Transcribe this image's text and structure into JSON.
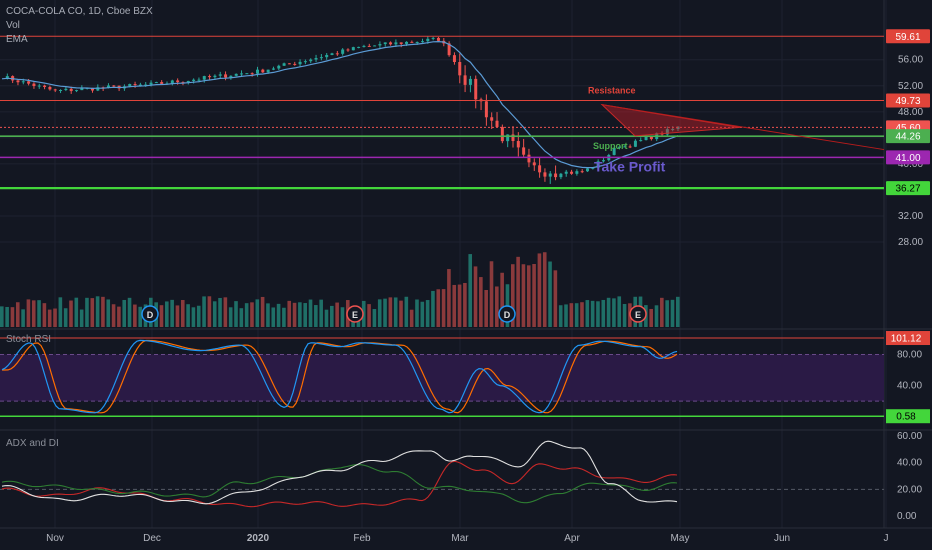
{
  "header": {
    "symbol_line": "COCA-COLA CO, 1D, Cboe BZX",
    "vol_label": "Vol",
    "ema_label": "EMA"
  },
  "panes": {
    "stoch_label": "Stoch RSI",
    "adx_label": "ADX and DI"
  },
  "colors": {
    "background": "#131722",
    "up": "#26a69a",
    "down": "#ef5350",
    "ema": "#5b9bd5",
    "resistance": "#e0443a",
    "support": "#4caf50",
    "take_profit": "#9c27b0",
    "stoch_fill": "#2a1a45",
    "stoch_k": "#2196f3",
    "stoch_d": "#ff6d00",
    "adx": "#e0e0e0",
    "di_plus": "#2e7d32",
    "di_minus": "#c62828"
  },
  "chart_data": {
    "type": "candlestick",
    "price_ticks": [
      "56.00",
      "52.00",
      "48.00",
      "44.00",
      "40.00",
      "32.00",
      "28.00"
    ],
    "price_tick_values": [
      56,
      52,
      48,
      44,
      40,
      32,
      28
    ],
    "x_ticks": [
      "Nov",
      "Dec",
      "2020",
      "Feb",
      "Mar",
      "Apr",
      "May",
      "Jun",
      "J"
    ],
    "levels": [
      {
        "name": "top",
        "value": 59.61,
        "label": "59.61",
        "color": "#e0443a"
      },
      {
        "name": "resistance",
        "value": 49.73,
        "label": "49.73",
        "color": "#e0443a"
      },
      {
        "name": "last",
        "value": 45.6,
        "label": "45.60",
        "color": "#ef5350"
      },
      {
        "name": "support",
        "value": 44.26,
        "label": "44.26",
        "color": "#4caf50"
      },
      {
        "name": "take-profit",
        "value": 41.0,
        "label": "41.00",
        "color": "#9c27b0"
      },
      {
        "name": "low",
        "value": 36.27,
        "label": "36.27",
        "color": "#43d63b"
      }
    ],
    "annotations": {
      "resistance": "Resistance",
      "support": "Support",
      "take_profit": "Take Profit"
    },
    "earnings_markers": [
      "D",
      "E",
      "D",
      "E"
    ],
    "price_anchors": {
      "months": [
        0,
        1,
        2,
        3,
        4,
        5,
        6
      ],
      "values": [
        53.5,
        51.5,
        54.5,
        58.5,
        59.2,
        39,
        45.6
      ]
    },
    "stoch_rsi": {
      "ticks": [
        "80.00",
        "40.00",
        "0.00"
      ],
      "tick_values": [
        80,
        40,
        0
      ],
      "level_label": "101.12",
      "level_value": 101.12,
      "bottom_label": "0.58",
      "bottom_value": 0.58
    },
    "adx_di": {
      "ticks": [
        "60.00",
        "40.00",
        "20.00",
        "0.00"
      ],
      "tick_values": [
        60,
        40,
        20,
        0
      ]
    }
  }
}
